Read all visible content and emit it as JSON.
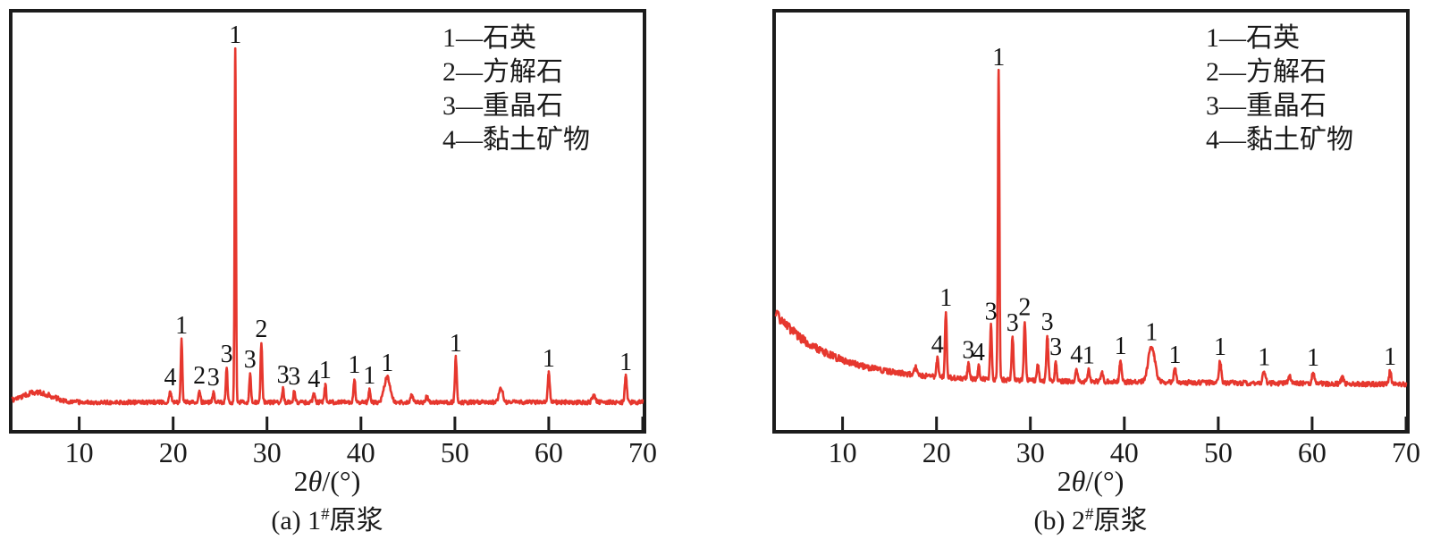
{
  "figure": {
    "type": "XRD diffraction patterns, two panels",
    "accent_color": "#e6372e",
    "axis_color": "#1c1c1c"
  },
  "chart_data": [
    {
      "type": "line",
      "panel": "a",
      "title": "(a) 1#原浆",
      "caption_prefix": "(a) 1",
      "caption_sup": "#",
      "caption_suffix": "原浆",
      "xlabel": "2θ/(°)",
      "xlabel_parts": {
        "prefix": "2",
        "theta": "θ",
        "suffix": "/(°)"
      },
      "xlim": [
        2.9,
        70
      ],
      "x_ticks": [
        10,
        20,
        30,
        40,
        50,
        60,
        70
      ],
      "legend": [
        "1—石英",
        "2—方解石",
        "3—重晶石",
        "4—黏土矿物"
      ],
      "legend_position": "top-right",
      "grid": false,
      "line_color": "#e6372e",
      "baseline_level": 450,
      "baseline_slope": 0,
      "background_hump": {
        "center": 5.5,
        "height": 11,
        "width": 2.2
      },
      "background_decay": null,
      "noise_amp": 2.3,
      "seed": 7,
      "peaks": [
        {
          "two_theta": 19.7,
          "intensity": 12,
          "width_deg": 0.16,
          "label": "4"
        },
        {
          "two_theta": 20.9,
          "intensity": 70,
          "width_deg": 0.12,
          "label": "1"
        },
        {
          "two_theta": 22.8,
          "intensity": 14,
          "width_deg": 0.14,
          "label": "2"
        },
        {
          "two_theta": 24.3,
          "intensity": 12,
          "width_deg": 0.13,
          "label": "3"
        },
        {
          "two_theta": 25.7,
          "intensity": 38,
          "width_deg": 0.12,
          "label": "3"
        },
        {
          "two_theta": 26.62,
          "intensity": 395,
          "width_deg": 0.1,
          "label": "1"
        },
        {
          "two_theta": 28.2,
          "intensity": 32,
          "width_deg": 0.13,
          "label": "3"
        },
        {
          "two_theta": 29.4,
          "intensity": 66,
          "width_deg": 0.13,
          "label": "2"
        },
        {
          "two_theta": 31.7,
          "intensity": 15,
          "width_deg": 0.13,
          "label": "3"
        },
        {
          "two_theta": 32.9,
          "intensity": 13,
          "width_deg": 0.13,
          "label": "3"
        },
        {
          "two_theta": 35.0,
          "intensity": 10,
          "width_deg": 0.15,
          "label": "4"
        },
        {
          "two_theta": 36.2,
          "intensity": 20,
          "width_deg": 0.13,
          "label": "1"
        },
        {
          "two_theta": 39.3,
          "intensity": 26,
          "width_deg": 0.14,
          "label": "1"
        },
        {
          "two_theta": 40.9,
          "intensity": 14,
          "width_deg": 0.13,
          "label": "1"
        },
        {
          "two_theta": 42.8,
          "intensity": 28,
          "width_deg": 0.45,
          "label": "1"
        },
        {
          "two_theta": 45.4,
          "intensity": 7,
          "width_deg": 0.2,
          "label": ""
        },
        {
          "two_theta": 47.0,
          "intensity": 6,
          "width_deg": 0.2,
          "label": ""
        },
        {
          "two_theta": 50.1,
          "intensity": 50,
          "width_deg": 0.14,
          "label": "1"
        },
        {
          "two_theta": 54.9,
          "intensity": 16,
          "width_deg": 0.3,
          "label": ""
        },
        {
          "two_theta": 60.0,
          "intensity": 33,
          "width_deg": 0.15,
          "label": "1"
        },
        {
          "two_theta": 64.8,
          "intensity": 7,
          "width_deg": 0.25,
          "label": ""
        },
        {
          "two_theta": 68.2,
          "intensity": 29,
          "width_deg": 0.15,
          "label": "1"
        }
      ]
    },
    {
      "type": "line",
      "panel": "b",
      "title": "(b) 2#原浆",
      "caption_prefix": "(b) 2",
      "caption_sup": "#",
      "caption_suffix": "原浆",
      "xlabel": "2θ/(°)",
      "xlabel_parts": {
        "prefix": "2",
        "theta": "θ",
        "suffix": "/(°)"
      },
      "xlim": [
        2.9,
        70
      ],
      "x_ticks": [
        10,
        20,
        30,
        40,
        50,
        60,
        70
      ],
      "legend": [
        "1—石英",
        "2—方解石",
        "3—重晶石",
        "4—黏土矿物"
      ],
      "legend_position": "top-right",
      "grid": false,
      "line_color": "#e6372e",
      "baseline_level": 424,
      "baseline_slope": 0.09,
      "background_hump": null,
      "background_decay": {
        "amp": 72,
        "tau": 6
      },
      "noise_amp": 2.6,
      "seed": 13,
      "peaks": [
        {
          "two_theta": 17.8,
          "intensity": 8,
          "width_deg": 0.2,
          "label": ""
        },
        {
          "two_theta": 20.1,
          "intensity": 20,
          "width_deg": 0.16,
          "label": "4"
        },
        {
          "two_theta": 21.0,
          "intensity": 73,
          "width_deg": 0.13,
          "label": "1"
        },
        {
          "two_theta": 23.4,
          "intensity": 16,
          "width_deg": 0.15,
          "label": "3"
        },
        {
          "two_theta": 24.5,
          "intensity": 14,
          "width_deg": 0.14,
          "label": "4"
        },
        {
          "two_theta": 25.8,
          "intensity": 60,
          "width_deg": 0.13,
          "label": "3"
        },
        {
          "two_theta": 26.62,
          "intensity": 345,
          "width_deg": 0.11,
          "label": "1"
        },
        {
          "two_theta": 28.1,
          "intensity": 48,
          "width_deg": 0.14,
          "label": "3"
        },
        {
          "two_theta": 29.4,
          "intensity": 66,
          "width_deg": 0.14,
          "label": "2"
        },
        {
          "two_theta": 30.8,
          "intensity": 18,
          "width_deg": 0.14,
          "label": ""
        },
        {
          "two_theta": 31.8,
          "intensity": 50,
          "width_deg": 0.15,
          "label": "3"
        },
        {
          "two_theta": 32.7,
          "intensity": 22,
          "width_deg": 0.13,
          "label": "3"
        },
        {
          "two_theta": 34.9,
          "intensity": 14,
          "width_deg": 0.15,
          "label": "4"
        },
        {
          "two_theta": 36.2,
          "intensity": 13,
          "width_deg": 0.14,
          "label": "1"
        },
        {
          "two_theta": 37.6,
          "intensity": 10,
          "width_deg": 0.18,
          "label": ""
        },
        {
          "two_theta": 39.6,
          "intensity": 24,
          "width_deg": 0.15,
          "label": "1"
        },
        {
          "two_theta": 42.9,
          "intensity": 40,
          "width_deg": 0.5,
          "label": "1"
        },
        {
          "two_theta": 45.4,
          "intensity": 15,
          "width_deg": 0.18,
          "label": "1"
        },
        {
          "two_theta": 50.2,
          "intensity": 24,
          "width_deg": 0.18,
          "label": "1"
        },
        {
          "two_theta": 54.9,
          "intensity": 13,
          "width_deg": 0.22,
          "label": "1"
        },
        {
          "two_theta": 57.6,
          "intensity": 8,
          "width_deg": 0.2,
          "label": ""
        },
        {
          "two_theta": 60.1,
          "intensity": 13,
          "width_deg": 0.18,
          "label": "1"
        },
        {
          "two_theta": 63.2,
          "intensity": 7,
          "width_deg": 0.2,
          "label": ""
        },
        {
          "two_theta": 68.3,
          "intensity": 15,
          "width_deg": 0.16,
          "label": "1"
        }
      ]
    }
  ]
}
